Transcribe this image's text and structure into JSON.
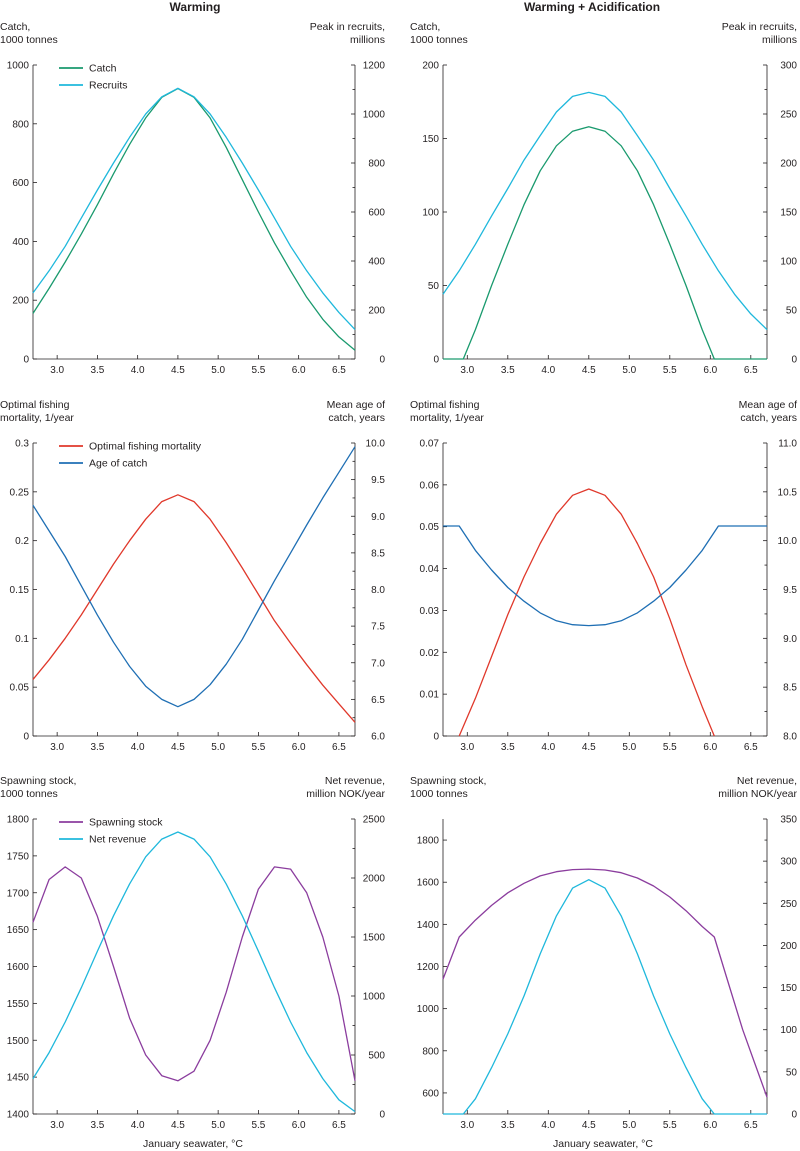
{
  "columns": [
    "Warming",
    "Warming + Acidification"
  ],
  "x_axis_label": "January seawater, °C",
  "colors": {
    "catch": "#1a9a6e",
    "recruits": "#1fb8dc",
    "mortality": "#e0382b",
    "age": "#1f6fb4",
    "stock": "#8b3d9e",
    "revenue": "#1fb8dc",
    "axis": "#231f20"
  },
  "chart_data": [
    {
      "id": "p1",
      "type": "line",
      "title": "Warming",
      "ylabel_left": [
        "Catch,",
        "1000 tonnes"
      ],
      "ylabel_right": [
        "Peak in recruits,",
        "millions"
      ],
      "xlim": [
        2.7,
        6.7
      ],
      "xticks": [
        "3.0",
        "3.5",
        "4.0",
        "4.5",
        "5.0",
        "5.5",
        "6.0",
        "6.5"
      ],
      "ylim_left": [
        0,
        1000
      ],
      "yticks_left": [
        "0",
        "200",
        "400",
        "600",
        "800",
        "1000"
      ],
      "ylim_right": [
        0,
        1200
      ],
      "yticks_right": [
        "0",
        "200",
        "400",
        "600",
        "800",
        "1000",
        "1200"
      ],
      "legend": [
        "Catch",
        "Recruits"
      ],
      "series": [
        {
          "name": "Catch",
          "color": "catch",
          "axis": "left",
          "x": [
            2.7,
            2.9,
            3.1,
            3.3,
            3.5,
            3.7,
            3.9,
            4.1,
            4.3,
            4.5,
            4.7,
            4.9,
            5.1,
            5.3,
            5.5,
            5.7,
            5.9,
            6.1,
            6.3,
            6.5,
            6.7
          ],
          "y": [
            155,
            240,
            330,
            425,
            525,
            630,
            730,
            820,
            890,
            920,
            890,
            820,
            720,
            610,
            500,
            395,
            300,
            210,
            135,
            75,
            30
          ]
        },
        {
          "name": "Recruits",
          "color": "recruits",
          "axis": "right",
          "x": [
            2.7,
            2.9,
            3.1,
            3.3,
            3.5,
            3.7,
            3.9,
            4.1,
            4.3,
            4.5,
            4.7,
            4.9,
            5.1,
            5.3,
            5.5,
            5.7,
            5.9,
            6.1,
            6.3,
            6.5,
            6.7
          ],
          "y": [
            270,
            360,
            460,
            575,
            690,
            800,
            905,
            1000,
            1070,
            1105,
            1070,
            1000,
            905,
            800,
            690,
            575,
            460,
            360,
            270,
            190,
            120
          ]
        }
      ]
    },
    {
      "id": "p2",
      "type": "line",
      "title": "Warming + Acidification",
      "ylabel_left": [
        "Catch,",
        "1000 tonnes"
      ],
      "ylabel_right": [
        "Peak in recruits,",
        "millions"
      ],
      "xlim": [
        2.7,
        6.7
      ],
      "xticks": [
        "3.0",
        "3.5",
        "4.0",
        "4.5",
        "5.0",
        "5.5",
        "6.0",
        "6.5"
      ],
      "ylim_left": [
        0,
        200
      ],
      "yticks_left": [
        "0",
        "50",
        "100",
        "150",
        "200"
      ],
      "ylim_right": [
        0,
        300
      ],
      "yticks_right": [
        "0",
        "50",
        "100",
        "150",
        "200",
        "250",
        "300"
      ],
      "legend": [],
      "series": [
        {
          "name": "Catch",
          "color": "catch",
          "axis": "left",
          "x": [
            2.7,
            2.9,
            2.95,
            3.1,
            3.3,
            3.5,
            3.7,
            3.9,
            4.1,
            4.3,
            4.5,
            4.7,
            4.9,
            5.1,
            5.3,
            5.5,
            5.7,
            5.9,
            6.05,
            6.1,
            6.3,
            6.5,
            6.7
          ],
          "y": [
            0,
            0,
            0,
            20,
            50,
            78,
            105,
            128,
            145,
            155,
            158,
            155,
            145,
            128,
            105,
            78,
            50,
            20,
            0,
            0,
            0,
            0,
            0
          ]
        },
        {
          "name": "Recruits",
          "color": "recruits",
          "axis": "right",
          "x": [
            2.7,
            2.9,
            3.1,
            3.3,
            3.5,
            3.7,
            3.9,
            4.1,
            4.3,
            4.5,
            4.7,
            4.9,
            5.1,
            5.3,
            5.5,
            5.7,
            5.9,
            6.1,
            6.3,
            6.5,
            6.7
          ],
          "y": [
            66,
            90,
            117,
            146,
            174,
            203,
            228,
            252,
            268,
            272,
            268,
            252,
            228,
            203,
            174,
            146,
            117,
            90,
            66,
            46,
            30
          ]
        }
      ]
    },
    {
      "id": "p3",
      "type": "line",
      "title": "",
      "ylabel_left": [
        "Optimal fishing",
        "mortality, 1/year"
      ],
      "ylabel_right": [
        "Mean age of",
        "catch, years"
      ],
      "xlim": [
        2.7,
        6.7
      ],
      "xticks": [
        "3.0",
        "3.5",
        "4.0",
        "4.5",
        "5.0",
        "5.5",
        "6.0",
        "6.5"
      ],
      "ylim_left": [
        0,
        0.3
      ],
      "yticks_left": [
        "0",
        "0.05",
        "0.1",
        "0.15",
        "0.2",
        "0.25",
        "0.3"
      ],
      "ylim_right": [
        6.0,
        10.0
      ],
      "yticks_right": [
        "6.0",
        "6.5",
        "7.0",
        "7.5",
        "8.0",
        "8.5",
        "9.0",
        "9.5",
        "10.0"
      ],
      "legend": [
        "Optimal fishing mortality",
        "Age of catch"
      ],
      "series": [
        {
          "name": "Optimal fishing mortality",
          "color": "mortality",
          "axis": "left",
          "x": [
            2.7,
            2.9,
            3.1,
            3.3,
            3.5,
            3.7,
            3.9,
            4.1,
            4.3,
            4.5,
            4.7,
            4.9,
            5.1,
            5.3,
            5.5,
            5.7,
            5.9,
            6.1,
            6.3,
            6.5,
            6.7
          ],
          "y": [
            0.058,
            0.078,
            0.1,
            0.124,
            0.15,
            0.176,
            0.2,
            0.222,
            0.24,
            0.247,
            0.24,
            0.222,
            0.198,
            0.172,
            0.145,
            0.118,
            0.095,
            0.073,
            0.052,
            0.033,
            0.014
          ]
        },
        {
          "name": "Age of catch",
          "color": "age",
          "axis": "right",
          "x": [
            2.7,
            2.9,
            3.1,
            3.3,
            3.5,
            3.7,
            3.9,
            4.1,
            4.3,
            4.5,
            4.7,
            4.9,
            5.1,
            5.3,
            5.5,
            5.7,
            5.9,
            6.1,
            6.3,
            6.5,
            6.7
          ],
          "y": [
            9.15,
            8.8,
            8.45,
            8.05,
            7.65,
            7.28,
            6.95,
            6.68,
            6.5,
            6.4,
            6.5,
            6.7,
            6.98,
            7.32,
            7.72,
            8.12,
            8.5,
            8.88,
            9.25,
            9.6,
            9.95
          ]
        }
      ]
    },
    {
      "id": "p4",
      "type": "line",
      "title": "",
      "ylabel_left": [
        "Optimal fishing",
        "mortality, 1/year"
      ],
      "ylabel_right": [
        "Mean age of",
        "catch, years"
      ],
      "xlim": [
        2.7,
        6.7
      ],
      "xticks": [
        "3.0",
        "3.5",
        "4.0",
        "4.5",
        "5.0",
        "5.5",
        "6.0",
        "6.5"
      ],
      "ylim_left": [
        0,
        0.07
      ],
      "yticks_left": [
        "0",
        "0.01",
        "0.02",
        "0.03",
        "0.04",
        "0.05",
        "0.06",
        "0.07"
      ],
      "ylim_right": [
        8.0,
        11.0
      ],
      "yticks_right": [
        "8.0",
        "8.5",
        "9.0",
        "9.5",
        "10.0",
        "10.5",
        "11.0"
      ],
      "legend": [],
      "series": [
        {
          "name": "Optimal fishing mortality",
          "color": "mortality",
          "axis": "left",
          "x": [
            2.9,
            3.1,
            3.3,
            3.5,
            3.7,
            3.9,
            4.1,
            4.3,
            4.5,
            4.7,
            4.9,
            5.1,
            5.3,
            5.5,
            5.7,
            5.9,
            6.05
          ],
          "y": [
            0.0,
            0.009,
            0.019,
            0.029,
            0.038,
            0.046,
            0.053,
            0.0575,
            0.059,
            0.0575,
            0.053,
            0.046,
            0.038,
            0.028,
            0.017,
            0.007,
            0.0
          ]
        },
        {
          "name": "Age of catch",
          "color": "age",
          "axis": "right",
          "x": [
            2.7,
            2.9,
            3.1,
            3.3,
            3.5,
            3.7,
            3.9,
            4.1,
            4.3,
            4.5,
            4.7,
            4.9,
            5.1,
            5.3,
            5.5,
            5.7,
            5.9,
            6.1,
            6.3,
            6.5,
            6.7
          ],
          "y": [
            10.15,
            10.15,
            9.9,
            9.7,
            9.52,
            9.38,
            9.26,
            9.18,
            9.14,
            9.13,
            9.14,
            9.18,
            9.26,
            9.38,
            9.52,
            9.7,
            9.9,
            10.15,
            10.15,
            10.15,
            10.15
          ]
        }
      ]
    },
    {
      "id": "p5",
      "type": "line",
      "title": "",
      "ylabel_left": [
        "Spawning stock,",
        "1000 tonnes"
      ],
      "ylabel_right": [
        "Net revenue,",
        "million NOK/year"
      ],
      "xlim": [
        2.7,
        6.7
      ],
      "xticks": [
        "3.0",
        "3.5",
        "4.0",
        "4.5",
        "5.0",
        "5.5",
        "6.0",
        "6.5"
      ],
      "ylim_left": [
        1400,
        1800
      ],
      "yticks_left": [
        "1400",
        "1450",
        "1500",
        "1550",
        "1600",
        "1650",
        "1700",
        "1750",
        "1800"
      ],
      "ylim_right": [
        0,
        2500
      ],
      "yticks_right": [
        "0",
        "500",
        "1000",
        "1500",
        "2000",
        "2500"
      ],
      "legend": [
        "Spawning stock",
        "Net revenue"
      ],
      "series": [
        {
          "name": "Spawning stock",
          "color": "stock",
          "axis": "left",
          "x": [
            2.7,
            2.9,
            3.1,
            3.3,
            3.5,
            3.7,
            3.9,
            4.1,
            4.3,
            4.5,
            4.7,
            4.9,
            5.1,
            5.3,
            5.5,
            5.7,
            5.9,
            6.1,
            6.3,
            6.5,
            6.7
          ],
          "y": [
            1660,
            1718,
            1735,
            1720,
            1668,
            1600,
            1530,
            1480,
            1452,
            1445,
            1458,
            1500,
            1565,
            1640,
            1705,
            1735,
            1732,
            1700,
            1640,
            1560,
            1445
          ]
        },
        {
          "name": "Net revenue",
          "color": "revenue",
          "axis": "right",
          "x": [
            2.7,
            2.9,
            3.1,
            3.3,
            3.5,
            3.7,
            3.9,
            4.1,
            4.3,
            4.5,
            4.7,
            4.9,
            5.1,
            5.3,
            5.5,
            5.7,
            5.9,
            6.1,
            6.3,
            6.5,
            6.7
          ],
          "y": [
            300,
            520,
            780,
            1070,
            1380,
            1680,
            1950,
            2180,
            2330,
            2390,
            2330,
            2180,
            1950,
            1680,
            1380,
            1070,
            780,
            520,
            300,
            120,
            20
          ]
        }
      ]
    },
    {
      "id": "p6",
      "type": "line",
      "title": "",
      "ylabel_left": [
        "Spawning stock,",
        "1000 tonnes"
      ],
      "ylabel_right": [
        "Net revenue,",
        "million NOK/year"
      ],
      "xlim": [
        2.7,
        6.7
      ],
      "xticks": [
        "3.0",
        "3.5",
        "4.0",
        "4.5",
        "5.0",
        "5.5",
        "6.0",
        "6.5"
      ],
      "ylim_left": [
        500,
        1900
      ],
      "yticks_left": [
        "600",
        "800",
        "1000",
        "1200",
        "1400",
        "1600",
        "1800"
      ],
      "ylim_right": [
        0,
        350
      ],
      "yticks_right": [
        "0",
        "50",
        "100",
        "150",
        "200",
        "250",
        "300",
        "350"
      ],
      "legend": [],
      "series": [
        {
          "name": "Spawning stock",
          "color": "stock",
          "axis": "left",
          "x": [
            2.7,
            2.9,
            3.1,
            3.3,
            3.5,
            3.7,
            3.9,
            4.1,
            4.3,
            4.5,
            4.7,
            4.9,
            5.1,
            5.3,
            5.5,
            5.7,
            5.9,
            6.05,
            6.2,
            6.4,
            6.55,
            6.7
          ],
          "y": [
            1140,
            1340,
            1420,
            1490,
            1550,
            1595,
            1630,
            1650,
            1660,
            1662,
            1658,
            1645,
            1620,
            1582,
            1530,
            1465,
            1390,
            1340,
            1150,
            900,
            740,
            580
          ]
        },
        {
          "name": "Net revenue",
          "color": "revenue",
          "axis": "right",
          "x": [
            2.7,
            2.9,
            2.95,
            3.1,
            3.3,
            3.5,
            3.7,
            3.9,
            4.1,
            4.3,
            4.5,
            4.7,
            4.9,
            5.1,
            5.3,
            5.5,
            5.7,
            5.9,
            6.05,
            6.1,
            6.3,
            6.5,
            6.7
          ],
          "y": [
            0,
            0,
            0,
            18,
            55,
            95,
            140,
            190,
            235,
            268,
            278,
            268,
            235,
            190,
            140,
            95,
            55,
            18,
            0,
            0,
            0,
            0,
            0
          ]
        }
      ]
    }
  ]
}
